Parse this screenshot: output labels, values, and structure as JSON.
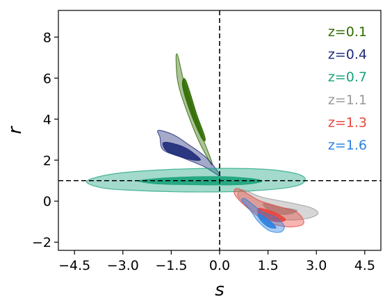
{
  "chart_data": {
    "type": "contour",
    "xlabel": "s",
    "ylabel": "r",
    "xlim": [
      -5.0,
      5.0
    ],
    "ylim": [
      -2.4,
      9.3
    ],
    "x_ticks": [
      -4.5,
      -3.0,
      -1.5,
      0.0,
      1.5,
      3.0,
      4.5
    ],
    "x_tick_labels": [
      "−4.5",
      "−3.0",
      "−1.5",
      "0.0",
      "1.5",
      "3.0",
      "4.5"
    ],
    "y_ticks": [
      -2,
      0,
      2,
      4,
      6,
      8
    ],
    "y_tick_labels": [
      "−2",
      "0",
      "2",
      "4",
      "6",
      "8"
    ],
    "reference_lines": {
      "s": 0,
      "r": 1
    },
    "legend_position": "top-right",
    "series": [
      {
        "name": "z=0.1",
        "color": "#2f6a00",
        "outer": [
          [
            -1.3,
            7.1
          ],
          [
            -1.05,
            5.5
          ],
          [
            -0.55,
            3.2
          ],
          [
            -0.25,
            1.95
          ],
          [
            -0.3,
            1.9
          ],
          [
            -0.75,
            3.3
          ],
          [
            -1.25,
            5.5
          ],
          [
            -1.35,
            6.8
          ]
        ],
        "inner": [
          [
            -1.05,
            5.9
          ],
          [
            -0.7,
            4.2
          ],
          [
            -0.45,
            3.1
          ],
          [
            -0.55,
            3.05
          ],
          [
            -0.9,
            4.3
          ],
          [
            -1.15,
            5.6
          ]
        ]
      },
      {
        "name": "z=0.4",
        "color": "#1f2a7a",
        "outer": [
          [
            -1.9,
            3.45
          ],
          [
            -1.45,
            3.25
          ],
          [
            -1.0,
            2.8
          ],
          [
            -0.4,
            2.1
          ],
          [
            0.0,
            1.25
          ],
          [
            -0.5,
            1.7
          ],
          [
            -1.2,
            2.15
          ],
          [
            -1.75,
            2.5
          ],
          [
            -1.85,
            3.1
          ]
        ],
        "inner": [
          [
            -1.75,
            2.85
          ],
          [
            -1.4,
            2.8
          ],
          [
            -1.0,
            2.55
          ],
          [
            -0.6,
            2.05
          ],
          [
            -0.8,
            2.0
          ],
          [
            -1.3,
            2.2
          ],
          [
            -1.65,
            2.45
          ]
        ]
      },
      {
        "name": "z=0.7",
        "color": "#1aa37c",
        "outer": [
          [
            -4.1,
            1.0
          ],
          [
            -3.2,
            1.35
          ],
          [
            -1.5,
            1.55
          ],
          [
            0.5,
            1.6
          ],
          [
            1.8,
            1.5
          ],
          [
            2.6,
            1.2
          ],
          [
            2.4,
            0.75
          ],
          [
            1.0,
            0.5
          ],
          [
            -1.0,
            0.45
          ],
          [
            -3.0,
            0.55
          ],
          [
            -3.8,
            0.7
          ]
        ],
        "inner": [
          [
            -2.5,
            1.0
          ],
          [
            -1.5,
            1.15
          ],
          [
            0.0,
            1.2
          ],
          [
            1.0,
            1.1
          ],
          [
            1.3,
            0.95
          ],
          [
            0.6,
            0.8
          ],
          [
            -1.0,
            0.8
          ],
          [
            -2.0,
            0.85
          ]
        ]
      },
      {
        "name": "z=1.1",
        "color": "#999999",
        "outer": [
          [
            0.7,
            0.55
          ],
          [
            1.3,
            0.2
          ],
          [
            2.1,
            -0.05
          ],
          [
            2.8,
            -0.3
          ],
          [
            3.05,
            -0.6
          ],
          [
            2.7,
            -0.85
          ],
          [
            2.0,
            -0.9
          ],
          [
            1.2,
            -0.6
          ],
          [
            0.6,
            0.15
          ]
        ],
        "inner": [
          [
            1.35,
            -0.1
          ],
          [
            1.9,
            -0.3
          ],
          [
            2.4,
            -0.45
          ],
          [
            2.1,
            -0.65
          ],
          [
            1.6,
            -0.55
          ]
        ]
      },
      {
        "name": "z=1.3",
        "color": "#e8453c",
        "outer": [
          [
            0.6,
            0.6
          ],
          [
            1.2,
            0.05
          ],
          [
            1.8,
            -0.25
          ],
          [
            2.4,
            -0.55
          ],
          [
            2.6,
            -1.1
          ],
          [
            2.1,
            -1.25
          ],
          [
            1.4,
            -0.95
          ],
          [
            0.7,
            -0.1
          ],
          [
            0.45,
            0.4
          ]
        ],
        "inner": [
          [
            1.2,
            -0.35
          ],
          [
            1.7,
            -0.55
          ],
          [
            2.05,
            -0.9
          ],
          [
            1.75,
            -1.0
          ],
          [
            1.3,
            -0.75
          ]
        ]
      },
      {
        "name": "z=1.6",
        "color": "#2b80e0",
        "outer": [
          [
            0.8,
            0.1
          ],
          [
            1.3,
            -0.5
          ],
          [
            1.75,
            -0.8
          ],
          [
            2.0,
            -1.2
          ],
          [
            1.9,
            -1.5
          ],
          [
            1.55,
            -1.45
          ],
          [
            1.2,
            -1.0
          ],
          [
            0.95,
            -0.45
          ],
          [
            0.7,
            0.0
          ]
        ],
        "inner": [
          [
            1.2,
            -0.6
          ],
          [
            1.55,
            -0.95
          ],
          [
            1.75,
            -1.3
          ],
          [
            1.5,
            -1.25
          ],
          [
            1.25,
            -0.9
          ]
        ]
      }
    ]
  }
}
